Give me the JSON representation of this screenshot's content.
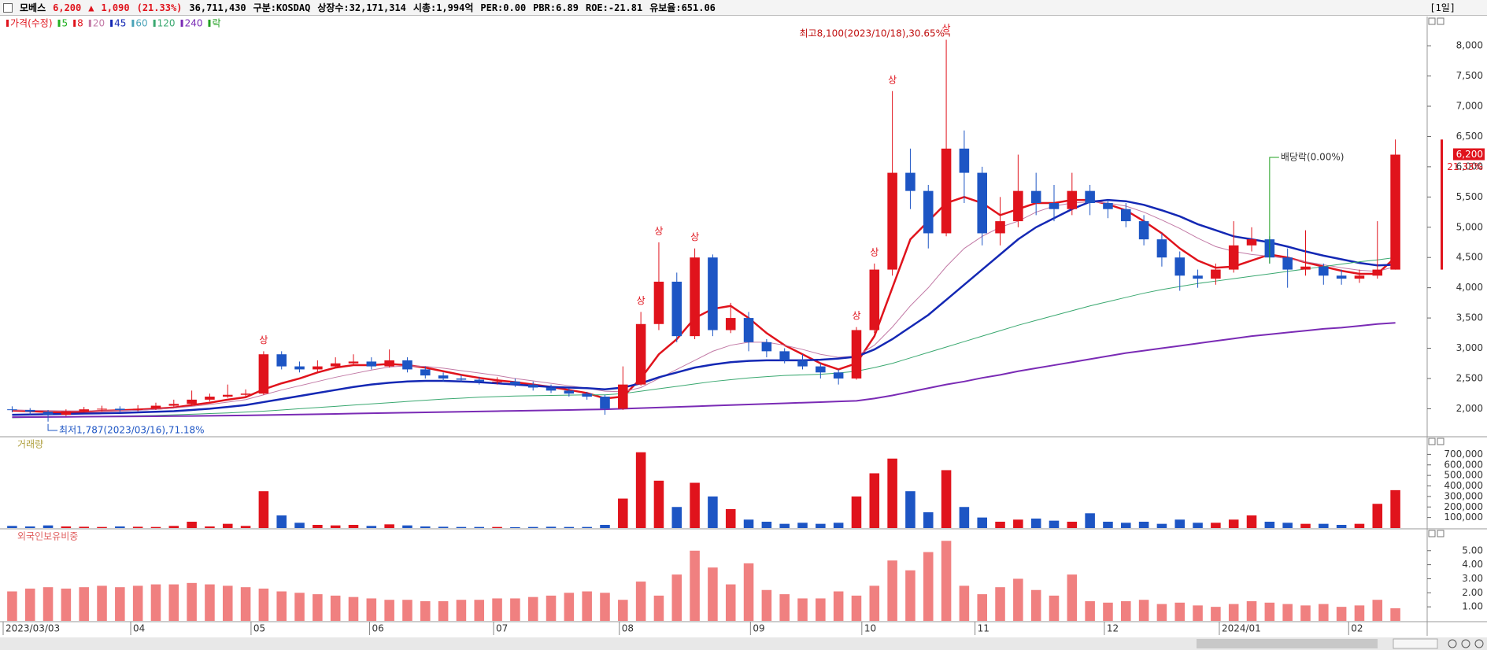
{
  "header": {
    "name": "모베스",
    "price": "6,200",
    "arrow": "▲",
    "change": "1,090",
    "change_pct": "(21.33%)",
    "volume": "36,711,430",
    "market": "구분:KOSDAQ",
    "shares": "상장수:32,171,314",
    "cap": "시총:1,994억",
    "per": "PER:0.00",
    "pbr": "PBR:6.89",
    "roe": "ROE:-21.81",
    "reserve": "유보율:651.06",
    "period": "[1일]"
  },
  "chart_data": {
    "type": "candlestick",
    "legend": {
      "price": "가격(수정)",
      "ex": "락"
    },
    "open": [
      1990,
      1980,
      1950,
      1900,
      1960,
      1990,
      2000,
      1980,
      2000,
      2050,
      2080,
      2150,
      2200,
      2230,
      2250,
      2900,
      2700,
      2650,
      2700,
      2750,
      2780,
      2700,
      2800,
      2650,
      2550,
      2500,
      2480,
      2450,
      2450,
      2400,
      2350,
      2300,
      2250,
      2200,
      2000,
      2400,
      3400,
      4100,
      3200,
      4500,
      3300,
      3500,
      3100,
      2950,
      2800,
      2700,
      2600,
      2500,
      3300,
      4300,
      5900,
      5600,
      4900,
      6300,
      5900,
      4900,
      5100,
      5600,
      5400,
      5300,
      5600,
      5400,
      5300,
      5100,
      4800,
      4500,
      4200,
      4150,
      4300,
      4700,
      4800,
      4500,
      4300,
      4350,
      4200,
      4150,
      4200,
      4300
    ],
    "high": [
      2040,
      2010,
      1980,
      1990,
      2030,
      2050,
      2040,
      2060,
      2100,
      2150,
      2300,
      2250,
      2400,
      2320,
      2950,
      2950,
      2780,
      2800,
      2850,
      2900,
      2850,
      2980,
      2850,
      2700,
      2600,
      2560,
      2530,
      2520,
      2500,
      2450,
      2400,
      2340,
      2280,
      2230,
      2700,
      3600,
      4750,
      4250,
      4650,
      4550,
      3750,
      3600,
      3150,
      3000,
      2900,
      2750,
      2650,
      3350,
      4400,
      7250,
      6300,
      5700,
      8100,
      6600,
      6000,
      5500,
      6200,
      5900,
      5700,
      5900,
      5700,
      5450,
      5400,
      5200,
      4900,
      4600,
      4300,
      4400,
      5100,
      5000,
      4850,
      4650,
      4950,
      4400,
      4300,
      4300,
      5100,
      6450
    ],
    "low": [
      1940,
      1900,
      1787,
      1880,
      1940,
      1960,
      1950,
      1960,
      1980,
      2020,
      2060,
      2120,
      2180,
      2190,
      2230,
      2650,
      2600,
      2600,
      2680,
      2720,
      2650,
      2680,
      2600,
      2500,
      2450,
      2440,
      2400,
      2400,
      2360,
      2300,
      2260,
      2200,
      2150,
      1900,
      1980,
      2380,
      3300,
      3100,
      3150,
      3200,
      3250,
      2950,
      2850,
      2750,
      2650,
      2500,
      2400,
      2480,
      3250,
      4200,
      5300,
      4650,
      4850,
      5400,
      4700,
      4700,
      5000,
      5200,
      5100,
      5200,
      5200,
      5150,
      5000,
      4700,
      4350,
      3950,
      4000,
      4050,
      4250,
      4600,
      4400,
      4000,
      4200,
      4050,
      4050,
      4080,
      4150,
      4300
    ],
    "close": [
      1980,
      1950,
      1900,
      1960,
      1990,
      2000,
      1980,
      2000,
      2050,
      2080,
      2150,
      2200,
      2230,
      2250,
      2900,
      2700,
      2650,
      2700,
      2750,
      2780,
      2700,
      2800,
      2650,
      2550,
      2500,
      2480,
      2450,
      2450,
      2400,
      2350,
      2300,
      2250,
      2200,
      2000,
      2400,
      3400,
      4100,
      3200,
      4500,
      3300,
      3500,
      3100,
      2950,
      2800,
      2700,
      2600,
      2500,
      3300,
      4300,
      5900,
      5600,
      4900,
      6300,
      5900,
      4900,
      5100,
      5600,
      5400,
      5300,
      5600,
      5400,
      5300,
      5100,
      4800,
      4500,
      4200,
      4150,
      4300,
      4700,
      4800,
      4500,
      4300,
      4350,
      4200,
      4150,
      4200,
      4300,
      6200
    ],
    "up_color": "#e0131c",
    "down_color": "#1d55c4",
    "ma": [
      {
        "name": "5",
        "color": "#22b022"
      },
      {
        "name": "8",
        "color": "#e0131c",
        "width": 2.5,
        "values": [
          1970,
          1960,
          1945,
          1940,
          1950,
          1965,
          1975,
          1985,
          2000,
          2020,
          2060,
          2100,
          2150,
          2190,
          2320,
          2420,
          2500,
          2600,
          2680,
          2720,
          2720,
          2740,
          2720,
          2680,
          2620,
          2560,
          2510,
          2470,
          2440,
          2400,
          2360,
          2310,
          2260,
          2170,
          2200,
          2500,
          2900,
          3150,
          3500,
          3650,
          3700,
          3500,
          3250,
          3050,
          2900,
          2750,
          2650,
          2750,
          3200,
          4000,
          4800,
          5100,
          5400,
          5500,
          5400,
          5200,
          5300,
          5400,
          5400,
          5450,
          5450,
          5380,
          5280,
          5100,
          4900,
          4650,
          4450,
          4330,
          4350,
          4450,
          4550,
          4500,
          4420,
          4350,
          4280,
          4230,
          4230,
          4500
        ]
      },
      {
        "name": "20",
        "color": "#c27aa6",
        "width": 1,
        "values": [
          1980,
          1975,
          1970,
          1965,
          1965,
          1965,
          1970,
          1975,
          1990,
          2010,
          2040,
          2070,
          2110,
          2150,
          2230,
          2310,
          2380,
          2450,
          2520,
          2580,
          2640,
          2690,
          2710,
          2700,
          2670,
          2630,
          2590,
          2550,
          2500,
          2460,
          2420,
          2380,
          2340,
          2290,
          2280,
          2350,
          2500,
          2650,
          2800,
          2950,
          3050,
          3100,
          3100,
          3050,
          2980,
          2900,
          2850,
          2870,
          3050,
          3350,
          3700,
          4000,
          4350,
          4650,
          4850,
          5000,
          5100,
          5250,
          5350,
          5400,
          5420,
          5400,
          5350,
          5250,
          5120,
          4980,
          4820,
          4680,
          4600,
          4550,
          4520,
          4480,
          4430,
          4380,
          4330,
          4290,
          4270,
          4350
        ]
      },
      {
        "name": "45",
        "color": "#1428b4",
        "width": 2.5,
        "values": [
          1900,
          1905,
          1910,
          1915,
          1920,
          1925,
          1930,
          1940,
          1950,
          1960,
          1980,
          2000,
          2030,
          2060,
          2110,
          2160,
          2210,
          2260,
          2310,
          2360,
          2400,
          2430,
          2450,
          2460,
          2460,
          2450,
          2440,
          2420,
          2400,
          2380,
          2360,
          2350,
          2340,
          2320,
          2350,
          2420,
          2520,
          2600,
          2680,
          2730,
          2770,
          2790,
          2800,
          2800,
          2800,
          2810,
          2830,
          2860,
          2980,
          3150,
          3350,
          3550,
          3800,
          4050,
          4300,
          4550,
          4800,
          5000,
          5150,
          5300,
          5420,
          5450,
          5430,
          5370,
          5280,
          5180,
          5050,
          4950,
          4850,
          4800,
          4750,
          4680,
          4600,
          4530,
          4470,
          4410,
          4370,
          4380
        ]
      },
      {
        "name": "60",
        "color": "#4aa3b8"
      },
      {
        "name": "120",
        "color": "#3aa870",
        "width": 1,
        "values": [
          1850,
          1855,
          1860,
          1865,
          1870,
          1875,
          1880,
          1885,
          1890,
          1900,
          1910,
          1920,
          1930,
          1945,
          1960,
          1980,
          2000,
          2020,
          2040,
          2060,
          2080,
          2100,
          2120,
          2140,
          2160,
          2175,
          2190,
          2200,
          2210,
          2215,
          2220,
          2225,
          2230,
          2230,
          2250,
          2290,
          2330,
          2370,
          2410,
          2450,
          2480,
          2510,
          2530,
          2550,
          2560,
          2570,
          2590,
          2620,
          2680,
          2750,
          2840,
          2930,
          3020,
          3110,
          3200,
          3290,
          3380,
          3460,
          3540,
          3620,
          3700,
          3770,
          3840,
          3910,
          3970,
          4020,
          4070,
          4110,
          4150,
          4190,
          4230,
          4270,
          4310,
          4350,
          4390,
          4430,
          4460,
          4500
        ]
      },
      {
        "name": "240",
        "color": "#7a2bb5",
        "width": 2,
        "values": [
          1860,
          1862,
          1864,
          1866,
          1868,
          1870,
          1872,
          1874,
          1876,
          1878,
          1880,
          1883,
          1886,
          1890,
          1895,
          1900,
          1905,
          1910,
          1915,
          1920,
          1925,
          1930,
          1935,
          1940,
          1945,
          1950,
          1955,
          1960,
          1965,
          1970,
          1975,
          1980,
          1985,
          1990,
          2000,
          2010,
          2020,
          2030,
          2040,
          2050,
          2060,
          2070,
          2080,
          2090,
          2100,
          2110,
          2120,
          2130,
          2170,
          2220,
          2280,
          2340,
          2400,
          2450,
          2510,
          2560,
          2620,
          2670,
          2720,
          2770,
          2820,
          2870,
          2920,
          2960,
          3000,
          3040,
          3080,
          3120,
          3160,
          3200,
          3230,
          3260,
          3290,
          3320,
          3340,
          3370,
          3400,
          3420
        ]
      }
    ],
    "ylim": [
      1550,
      8470
    ],
    "yticks": [
      {
        "value": 2000,
        "label": "2,000"
      },
      {
        "value": 2500,
        "label": "2,500"
      },
      {
        "value": 3000,
        "label": "3,000"
      },
      {
        "value": 3500,
        "label": "3,500"
      },
      {
        "value": 4000,
        "label": "4,000"
      },
      {
        "value": 4500,
        "label": "4,500"
      },
      {
        "value": 5000,
        "label": "5,000"
      },
      {
        "value": 5500,
        "label": "5,500"
      },
      {
        "value": 6000,
        "label": "6,000"
      },
      {
        "value": 6500,
        "label": "6,500"
      },
      {
        "value": 7000,
        "label": "7,000"
      },
      {
        "value": 7500,
        "label": "7,500"
      },
      {
        "value": 8000,
        "label": "8,000"
      }
    ],
    "high_note": {
      "label": "최고8,100(2023/10/18),30.65%",
      "index": 52
    },
    "low_note": {
      "label": "최저1,787(2023/03/16),71.18%",
      "index": 2
    },
    "dividend": {
      "label": "배당락(0.00%)",
      "index": 70
    },
    "limit_up": {
      "label": "상",
      "indices": [
        14,
        35,
        36,
        38,
        47,
        48,
        49,
        52
      ]
    },
    "last_pct": "21.33%",
    "volume": {
      "title": "거래량",
      "values": [
        20000,
        15000,
        25000,
        15000,
        12000,
        10000,
        15000,
        12000,
        10000,
        20000,
        60000,
        15000,
        40000,
        20000,
        350000,
        120000,
        50000,
        30000,
        25000,
        30000,
        20000,
        35000,
        25000,
        15000,
        12000,
        10000,
        10000,
        10000,
        8000,
        10000,
        12000,
        10000,
        10000,
        30000,
        280000,
        720000,
        450000,
        200000,
        430000,
        300000,
        180000,
        80000,
        60000,
        40000,
        50000,
        40000,
        50000,
        300000,
        520000,
        660000,
        350000,
        150000,
        550000,
        200000,
        100000,
        60000,
        80000,
        90000,
        70000,
        60000,
        140000,
        60000,
        50000,
        60000,
        40000,
        80000,
        50000,
        50000,
        80000,
        120000,
        60000,
        50000,
        40000,
        40000,
        30000,
        40000,
        230000,
        360000
      ],
      "ylim": [
        0,
        860000
      ],
      "yticks": [
        {
          "value": 100000,
          "label": "100,000"
        },
        {
          "value": 200000,
          "label": "200,000"
        },
        {
          "value": 300000,
          "label": "300,000"
        },
        {
          "value": 400000,
          "label": "400,000"
        },
        {
          "value": 500000,
          "label": "500,000"
        },
        {
          "value": 600000,
          "label": "600,000"
        },
        {
          "value": 700000,
          "label": "700,000"
        }
      ]
    },
    "foreign": {
      "title": "외국인보유비중",
      "color": "#f08080",
      "values": [
        2.1,
        2.3,
        2.4,
        2.3,
        2.4,
        2.5,
        2.4,
        2.5,
        2.6,
        2.6,
        2.7,
        2.6,
        2.5,
        2.4,
        2.3,
        2.1,
        2.0,
        1.9,
        1.8,
        1.7,
        1.6,
        1.5,
        1.5,
        1.4,
        1.4,
        1.5,
        1.5,
        1.6,
        1.6,
        1.7,
        1.8,
        2.0,
        2.1,
        2.0,
        1.5,
        2.8,
        1.8,
        3.3,
        5.0,
        3.8,
        2.6,
        4.1,
        2.2,
        1.9,
        1.6,
        1.6,
        2.1,
        1.8,
        2.5,
        4.3,
        3.6,
        4.9,
        5.7,
        2.5,
        1.9,
        2.4,
        3.0,
        2.2,
        1.8,
        3.3,
        1.4,
        1.3,
        1.4,
        1.5,
        1.2,
        1.3,
        1.1,
        1.0,
        1.2,
        1.4,
        1.3,
        1.2,
        1.1,
        1.2,
        1.0,
        1.1,
        1.5,
        0.9
      ],
      "ylim": [
        0,
        6.5
      ],
      "yticks": [
        {
          "value": 1,
          "label": "1.00"
        },
        {
          "value": 2,
          "label": "2.00"
        },
        {
          "value": 3,
          "label": "3.00"
        },
        {
          "value": 4,
          "label": "4.00"
        },
        {
          "value": 5,
          "label": "5.00"
        }
      ]
    },
    "xticks": [
      {
        "value": 0,
        "label": "2023/03/03"
      },
      {
        "value": 7.1,
        "label": "04"
      },
      {
        "value": 13.8,
        "label": "05"
      },
      {
        "value": 20.4,
        "label": "06"
      },
      {
        "value": 27.3,
        "label": "07"
      },
      {
        "value": 34.3,
        "label": "08"
      },
      {
        "value": 41.6,
        "label": "09"
      },
      {
        "value": 47.8,
        "label": "10"
      },
      {
        "value": 54.1,
        "label": "11"
      },
      {
        "value": 61.3,
        "label": "12"
      },
      {
        "value": 67.7,
        "label": "2024/01"
      },
      {
        "value": 74.9,
        "label": "02"
      }
    ]
  }
}
